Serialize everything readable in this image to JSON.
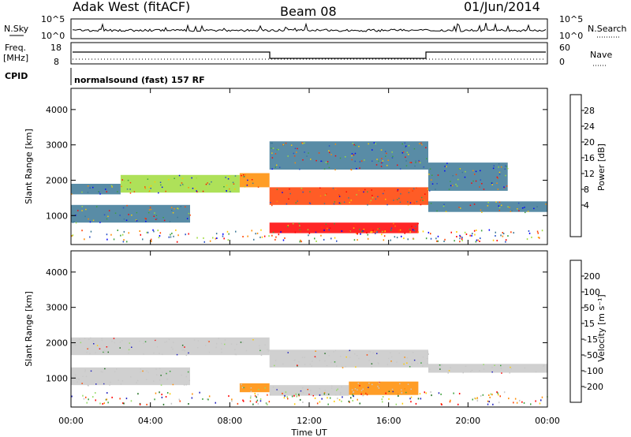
{
  "header": {
    "station": "Adak West (fitACF)",
    "beam": "Beam 08",
    "date": "01/Jun/2014"
  },
  "top_panels": {
    "nsky_label": "N.Sky",
    "nsky_ticks": [
      "10^5",
      "10^0"
    ],
    "nsearch_label": "N.Search",
    "freq_label_1": "Freq.",
    "freq_label_2": "[MHz]",
    "freq_ticks": [
      "18",
      "8"
    ],
    "nave_label": "Nave",
    "nave_ticks": [
      "60",
      "0"
    ],
    "cpid_label": "CPID",
    "cpid_text": "normalsound (fast) 157 RF"
  },
  "chart_data": [
    {
      "type": "heatmap",
      "panel": "power",
      "ylabel": "Slant Range [km]",
      "xlabel": "",
      "y_ticks": [
        "1000",
        "2000",
        "3000",
        "4000"
      ],
      "ylim": [
        180,
        4600
      ],
      "x_ticks": [
        "00:00",
        "04:00",
        "08:00",
        "12:00",
        "16:00",
        "20:00",
        "00:00"
      ],
      "xlim_hours": [
        0,
        24
      ],
      "colorbar": {
        "label": "Power [dB]",
        "ticks": [
          "28",
          "24",
          "20",
          "16",
          "12",
          "8",
          "4"
        ],
        "colors": [
          "#ff0000",
          "#ff4000",
          "#ff8c00",
          "#ffcc00",
          "#a0dc3c",
          "#3ca03c",
          "#3c7896",
          "#2850c8",
          "#0000ff"
        ]
      },
      "bands": [
        {
          "start_h": 0,
          "end_h": 2.5,
          "range_km": [
            1600,
            1900
          ],
          "power_db": 8
        },
        {
          "start_h": 2.5,
          "end_h": 8.5,
          "range_km": [
            1650,
            2150
          ],
          "power_db": 14
        },
        {
          "start_h": 8.5,
          "end_h": 10,
          "range_km": [
            1800,
            2200
          ],
          "power_db": 22
        },
        {
          "start_h": 10,
          "end_h": 18,
          "range_km": [
            1300,
            1800
          ],
          "power_db": 24
        },
        {
          "start_h": 10,
          "end_h": 17.5,
          "range_km": [
            500,
            800
          ],
          "power_db": 28
        },
        {
          "start_h": 0,
          "end_h": 6,
          "range_km": [
            800,
            1300
          ],
          "power_db": 10
        },
        {
          "start_h": 10,
          "end_h": 18,
          "range_km": [
            2300,
            3100
          ],
          "power_db": 8
        },
        {
          "start_h": 18,
          "end_h": 24,
          "range_km": [
            1100,
            1400
          ],
          "power_db": 8
        },
        {
          "start_h": 18,
          "end_h": 22,
          "range_km": [
            1700,
            2500
          ],
          "power_db": 10
        }
      ]
    },
    {
      "type": "heatmap",
      "panel": "velocity",
      "ylabel": "Slant Range [km]",
      "xlabel": "Time UT",
      "y_ticks": [
        "1000",
        "2000",
        "3000",
        "4000"
      ],
      "ylim": [
        180,
        4600
      ],
      "x_ticks": [
        "00:00",
        "04:00",
        "08:00",
        "12:00",
        "16:00",
        "20:00",
        "00:00"
      ],
      "xlim_hours": [
        0,
        24
      ],
      "colorbar": {
        "label": "Velocity [m s⁻¹]",
        "ticks": [
          "200",
          "100",
          "50",
          "15",
          "-15",
          "-50",
          "-100",
          "-200"
        ],
        "colors": [
          "#1e1ebe",
          "#1e6e1e",
          "#3ca03c",
          "#96dc64",
          "#c8c8c8",
          "#ffcc00",
          "#ff8c00",
          "#ff4000",
          "#ff0000"
        ]
      },
      "bands": [
        {
          "start_h": 0,
          "end_h": 10,
          "range_km": [
            1650,
            2150
          ],
          "velocity": 0
        },
        {
          "start_h": 10,
          "end_h": 18,
          "range_km": [
            1300,
            1800
          ],
          "velocity": 0
        },
        {
          "start_h": 8.5,
          "end_h": 10,
          "range_km": [
            600,
            850
          ],
          "velocity": -60
        },
        {
          "start_h": 14,
          "end_h": 17.5,
          "range_km": [
            520,
            900
          ],
          "velocity": -60
        },
        {
          "start_h": 10,
          "end_h": 14,
          "range_km": [
            500,
            800
          ],
          "velocity": 0
        },
        {
          "start_h": 18,
          "end_h": 24,
          "range_km": [
            1150,
            1400
          ],
          "velocity": 0
        },
        {
          "start_h": 0,
          "end_h": 6,
          "range_km": [
            800,
            1300
          ],
          "velocity": 0
        }
      ]
    }
  ]
}
